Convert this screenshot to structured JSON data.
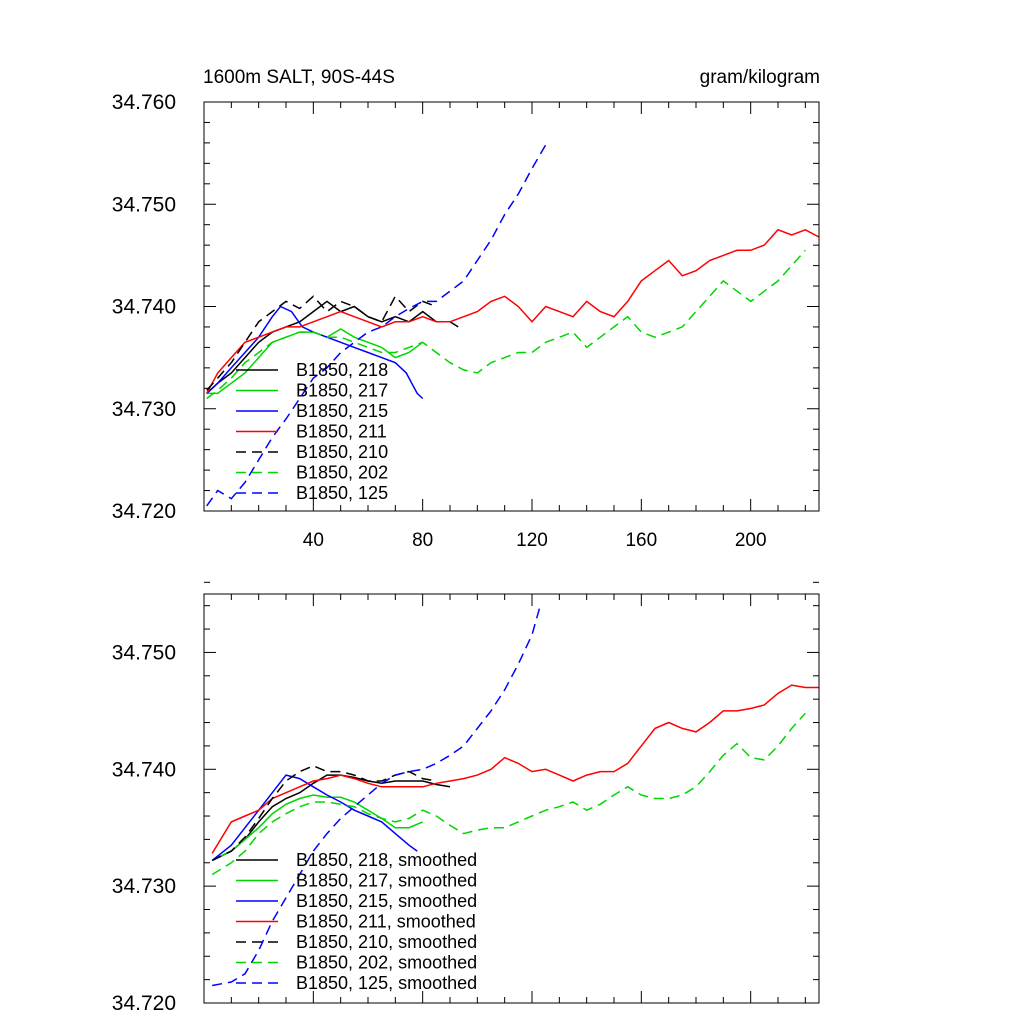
{
  "chart_data": [
    {
      "type": "line",
      "title": "1600m SALT, 90S-44S",
      "units": "gram/kilogram",
      "xlim": [
        0,
        225
      ],
      "ylim": [
        34.72,
        34.76
      ],
      "xticks": [
        "40",
        "80",
        "120",
        "160",
        "200"
      ],
      "xtick_values": [
        40,
        80,
        120,
        160,
        200
      ],
      "yticks": [
        "34.720",
        "34.730",
        "34.740",
        "34.750",
        "34.760"
      ],
      "ytick_values": [
        34.72,
        34.73,
        34.74,
        34.75,
        34.76
      ],
      "legend": "bottom-left",
      "series": [
        {
          "name": "B1850, 218",
          "color": "#000000",
          "dash": "solid",
          "x": [
            1,
            5,
            10,
            15,
            20,
            25,
            30,
            35,
            40,
            45,
            50,
            55,
            60,
            65,
            70,
            75,
            80,
            85,
            90,
            93
          ],
          "y": [
            34.7315,
            34.7325,
            34.7335,
            34.735,
            34.7365,
            34.7375,
            34.738,
            34.7385,
            34.7395,
            34.7405,
            34.7395,
            34.74,
            34.739,
            34.7385,
            34.739,
            34.7385,
            34.7395,
            34.7385,
            34.7385,
            34.738
          ]
        },
        {
          "name": "B1850, 217",
          "color": "#00d600",
          "dash": "solid",
          "x": [
            1,
            5,
            10,
            15,
            20,
            25,
            30,
            35,
            40,
            45,
            50,
            55,
            60,
            65,
            70,
            75,
            80
          ],
          "y": [
            34.7315,
            34.7315,
            34.7325,
            34.7335,
            34.735,
            34.7365,
            34.737,
            34.7375,
            34.7375,
            34.737,
            34.7378,
            34.737,
            34.7365,
            34.736,
            34.735,
            34.7355,
            34.7365
          ]
        },
        {
          "name": "B1850, 215",
          "color": "#0000ff",
          "dash": "solid",
          "x": [
            1,
            5,
            10,
            15,
            20,
            25,
            28,
            32,
            36,
            40,
            45,
            50,
            55,
            60,
            65,
            70,
            72,
            74,
            76,
            78,
            80
          ],
          "y": [
            34.7315,
            34.7325,
            34.734,
            34.7355,
            34.737,
            34.739,
            34.74,
            34.7395,
            34.738,
            34.7375,
            34.737,
            34.7365,
            34.736,
            34.7355,
            34.735,
            34.7345,
            34.734,
            34.7335,
            34.7325,
            34.7315,
            34.731
          ]
        },
        {
          "name": "B1850, 211",
          "color": "#ff0000",
          "dash": "solid",
          "x": [
            1,
            5,
            10,
            15,
            20,
            25,
            30,
            35,
            40,
            45,
            50,
            55,
            60,
            65,
            70,
            75,
            80,
            85,
            90,
            95,
            100,
            105,
            110,
            115,
            120,
            125,
            130,
            135,
            140,
            145,
            150,
            155,
            160,
            165,
            170,
            175,
            180,
            185,
            190,
            195,
            200,
            205,
            210,
            215,
            220,
            225
          ],
          "y": [
            34.7315,
            34.7335,
            34.735,
            34.7365,
            34.737,
            34.7375,
            34.738,
            34.738,
            34.7385,
            34.739,
            34.7395,
            34.739,
            34.7385,
            34.738,
            34.7385,
            34.7385,
            34.739,
            34.7385,
            34.7385,
            34.739,
            34.7395,
            34.7405,
            34.741,
            34.74,
            34.7385,
            34.74,
            34.7395,
            34.739,
            34.7405,
            34.7395,
            34.739,
            34.7405,
            34.7425,
            34.7435,
            34.7445,
            34.743,
            34.7435,
            34.7445,
            34.745,
            34.7455,
            34.7455,
            34.746,
            34.7475,
            34.747,
            34.7475,
            34.7468
          ]
        },
        {
          "name": "B1850, 210",
          "color": "#000000",
          "dash": "dashed",
          "x": [
            1,
            5,
            10,
            15,
            20,
            25,
            30,
            35,
            40,
            45,
            50,
            55,
            60,
            65,
            70,
            75,
            80,
            85
          ],
          "y": [
            34.7318,
            34.733,
            34.7345,
            34.7365,
            34.7385,
            34.7395,
            34.7405,
            34.7398,
            34.741,
            34.7395,
            34.7405,
            34.74,
            34.739,
            34.7385,
            34.741,
            34.7395,
            34.7405,
            34.74
          ]
        },
        {
          "name": "B1850, 202",
          "color": "#00d600",
          "dash": "dashed",
          "x": [
            1,
            5,
            10,
            15,
            20,
            25,
            30,
            35,
            40,
            45,
            50,
            55,
            60,
            65,
            70,
            75,
            80,
            85,
            90,
            95,
            100,
            105,
            110,
            115,
            120,
            125,
            130,
            135,
            140,
            145,
            150,
            155,
            160,
            165,
            170,
            175,
            180,
            185,
            190,
            195,
            200,
            205,
            210,
            215,
            220
          ],
          "y": [
            34.731,
            34.7318,
            34.733,
            34.7345,
            34.7355,
            34.7365,
            34.737,
            34.7375,
            34.7375,
            34.737,
            34.737,
            34.7365,
            34.736,
            34.7355,
            34.7355,
            34.736,
            34.7365,
            34.7355,
            34.7345,
            34.7338,
            34.7335,
            34.7345,
            34.735,
            34.7355,
            34.7355,
            34.7365,
            34.737,
            34.7375,
            34.736,
            34.737,
            34.738,
            34.739,
            34.7375,
            34.737,
            34.7375,
            34.738,
            34.7395,
            34.741,
            34.7425,
            34.7415,
            34.7405,
            34.7415,
            34.7425,
            34.744,
            34.7455
          ]
        },
        {
          "name": "B1850, 125",
          "color": "#0000ff",
          "dash": "dashed",
          "x": [
            1,
            5,
            10,
            15,
            20,
            25,
            30,
            35,
            40,
            45,
            50,
            55,
            60,
            65,
            70,
            75,
            80,
            85,
            90,
            95,
            100,
            105,
            110,
            115,
            120,
            125
          ],
          "y": [
            34.7205,
            34.722,
            34.7212,
            34.7228,
            34.725,
            34.7272,
            34.729,
            34.731,
            34.733,
            34.734,
            34.7355,
            34.7365,
            34.7375,
            34.738,
            34.739,
            34.7398,
            34.7405,
            34.7405,
            34.7415,
            34.7425,
            34.7445,
            34.7465,
            34.749,
            34.751,
            34.7535,
            34.7558
          ]
        }
      ]
    },
    {
      "type": "line",
      "title": "",
      "xlim": [
        0,
        225
      ],
      "ylim": [
        34.72,
        34.755
      ],
      "xticks": [],
      "xtick_values": [
        40,
        80,
        120,
        160,
        200
      ],
      "yticks": [
        "34.720",
        "34.730",
        "34.740",
        "34.750"
      ],
      "ytick_values": [
        34.72,
        34.73,
        34.74,
        34.75
      ],
      "legend": "bottom-left",
      "series": [
        {
          "name": "B1850, 218, smoothed",
          "color": "#000000",
          "dash": "solid",
          "x": [
            3,
            10,
            15,
            20,
            25,
            30,
            35,
            40,
            45,
            50,
            55,
            60,
            65,
            70,
            75,
            80,
            85,
            90
          ],
          "y": [
            34.7322,
            34.733,
            34.734,
            34.7355,
            34.7368,
            34.7375,
            34.738,
            34.7388,
            34.7395,
            34.7395,
            34.7393,
            34.739,
            34.7388,
            34.739,
            34.739,
            34.739,
            34.7387,
            34.7385
          ]
        },
        {
          "name": "B1850, 217, smoothed",
          "color": "#00d600",
          "dash": "solid",
          "x": [
            3,
            10,
            15,
            20,
            25,
            30,
            35,
            40,
            45,
            50,
            55,
            60,
            65,
            70,
            75,
            80
          ],
          "y": [
            34.7322,
            34.733,
            34.734,
            34.735,
            34.7362,
            34.737,
            34.7375,
            34.7378,
            34.7376,
            34.7376,
            34.7372,
            34.7365,
            34.7358,
            34.735,
            34.735,
            34.7355
          ]
        },
        {
          "name": "B1850, 215, smoothed",
          "color": "#0000ff",
          "dash": "solid",
          "x": [
            3,
            10,
            15,
            20,
            25,
            30,
            35,
            40,
            45,
            50,
            55,
            60,
            65,
            70,
            75,
            78
          ],
          "y": [
            34.7322,
            34.7335,
            34.735,
            34.7365,
            34.738,
            34.7395,
            34.7392,
            34.7385,
            34.7378,
            34.7372,
            34.7365,
            34.736,
            34.7355,
            34.7345,
            34.7335,
            34.733
          ]
        },
        {
          "name": "B1850, 211, smoothed",
          "color": "#ff0000",
          "dash": "solid",
          "x": [
            3,
            10,
            15,
            20,
            25,
            30,
            35,
            40,
            45,
            50,
            55,
            60,
            65,
            70,
            75,
            80,
            85,
            90,
            95,
            100,
            105,
            110,
            115,
            120,
            125,
            130,
            135,
            140,
            145,
            150,
            155,
            160,
            165,
            170,
            175,
            180,
            185,
            190,
            195,
            200,
            205,
            210,
            215,
            220,
            225
          ],
          "y": [
            34.7328,
            34.7355,
            34.736,
            34.7365,
            34.7375,
            34.738,
            34.7385,
            34.739,
            34.7392,
            34.7395,
            34.7392,
            34.7388,
            34.7385,
            34.7385,
            34.7385,
            34.7385,
            34.7388,
            34.739,
            34.7392,
            34.7395,
            34.74,
            34.741,
            34.7405,
            34.7398,
            34.74,
            34.7395,
            34.739,
            34.7395,
            34.7398,
            34.7398,
            34.7405,
            34.742,
            34.7435,
            34.744,
            34.7435,
            34.7432,
            34.744,
            34.745,
            34.745,
            34.7452,
            34.7455,
            34.7465,
            34.7472,
            34.747,
            34.747
          ]
        },
        {
          "name": "B1850, 210, smoothed",
          "color": "#000000",
          "dash": "dashed",
          "x": [
            3,
            10,
            15,
            20,
            25,
            30,
            35,
            40,
            45,
            50,
            55,
            60,
            65,
            70,
            75,
            80,
            85
          ],
          "y": [
            34.7322,
            34.733,
            34.7342,
            34.7358,
            34.7375,
            34.739,
            34.7398,
            34.7403,
            34.7398,
            34.7398,
            34.7395,
            34.739,
            34.739,
            34.7395,
            34.7398,
            34.7392,
            34.739
          ]
        },
        {
          "name": "B1850, 202, smoothed",
          "color": "#00d600",
          "dash": "dashed",
          "x": [
            3,
            10,
            15,
            20,
            25,
            30,
            35,
            40,
            45,
            50,
            55,
            60,
            65,
            70,
            75,
            80,
            85,
            90,
            95,
            100,
            105,
            110,
            115,
            120,
            125,
            130,
            135,
            140,
            145,
            150,
            155,
            160,
            165,
            170,
            175,
            180,
            185,
            190,
            195,
            200,
            205,
            210,
            215,
            220
          ],
          "y": [
            34.731,
            34.732,
            34.733,
            34.7345,
            34.7355,
            34.7362,
            34.7368,
            34.7372,
            34.7372,
            34.737,
            34.7368,
            34.7362,
            34.7358,
            34.7355,
            34.7358,
            34.7365,
            34.736,
            34.7352,
            34.7345,
            34.7348,
            34.735,
            34.735,
            34.7355,
            34.736,
            34.7365,
            34.7368,
            34.7372,
            34.7365,
            34.737,
            34.7378,
            34.7385,
            34.7378,
            34.7375,
            34.7375,
            34.7378,
            34.7385,
            34.7398,
            34.7412,
            34.7422,
            34.741,
            34.7408,
            34.742,
            34.7435,
            34.7448
          ]
        },
        {
          "name": "B1850, 125, smoothed",
          "color": "#0000ff",
          "dash": "dashed",
          "x": [
            3,
            10,
            15,
            20,
            25,
            30,
            35,
            40,
            45,
            50,
            55,
            60,
            65,
            70,
            75,
            80,
            85,
            90,
            95,
            100,
            105,
            110,
            115,
            120,
            123
          ],
          "y": [
            34.7215,
            34.7218,
            34.7225,
            34.7245,
            34.727,
            34.729,
            34.731,
            34.733,
            34.7345,
            34.7358,
            34.7368,
            34.7378,
            34.7388,
            34.7395,
            34.7398,
            34.74,
            34.7405,
            34.7412,
            34.742,
            34.7435,
            34.745,
            34.7468,
            34.749,
            34.7515,
            34.754
          ]
        }
      ]
    }
  ]
}
